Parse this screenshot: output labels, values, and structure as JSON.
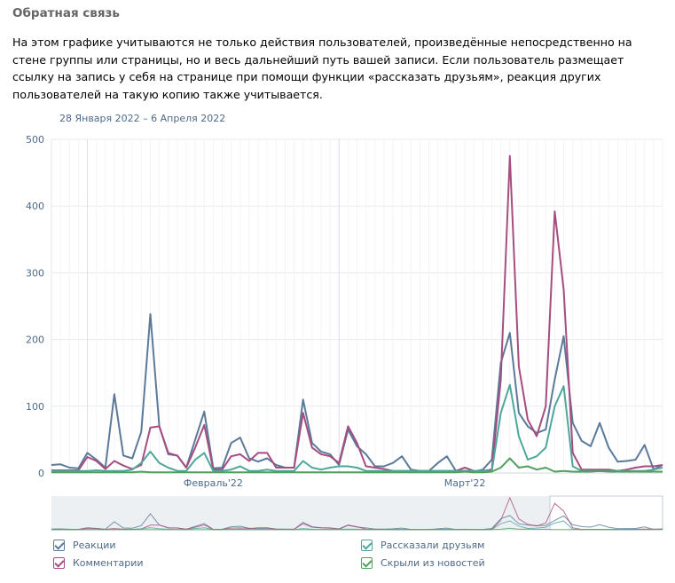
{
  "header": {
    "title": "Обратная связь",
    "description": "На этом графике учитываются не только действия пользователей, произведённые непосредственно на стене группы или страницы, но и весь дальнейший путь вашей записи. Если пользователь размещает ссылку на запись у себя на странице при помощи функции «рассказать друзьям», реакция других пользователей на такую копию также учитывается.",
    "date_range": "28 Января 2022 – 6 Апреля 2022"
  },
  "chart_data": {
    "type": "line",
    "x_start": "2022-01-28",
    "x_end": "2022-04-06",
    "ylim": [
      0,
      500
    ],
    "yticks": [
      0,
      100,
      200,
      300,
      400,
      500
    ],
    "xtick_labels": [
      {
        "label": "Февраль'22",
        "date": "2022-02-01"
      },
      {
        "label": "Март'22",
        "date": "2022-03-01"
      }
    ],
    "grid": true,
    "legend_position": "bottom",
    "series": [
      {
        "name": "Реакции",
        "color": "#5b7a99",
        "values": [
          12,
          13,
          8,
          7,
          30,
          20,
          8,
          118,
          26,
          22,
          62,
          238,
          70,
          28,
          26,
          8,
          50,
          92,
          7,
          8,
          45,
          53,
          22,
          17,
          22,
          12,
          8,
          8,
          110,
          45,
          32,
          28,
          12,
          65,
          40,
          28,
          10,
          10,
          15,
          25,
          5,
          3,
          3,
          15,
          25,
          3,
          3,
          2,
          5,
          20,
          165,
          210,
          90,
          70,
          60,
          65,
          140,
          205,
          75,
          48,
          40,
          75,
          38,
          17,
          18,
          20,
          42,
          5,
          12
        ]
      },
      {
        "name": "Комментарии",
        "color": "#a64d80",
        "values": [
          4,
          4,
          4,
          4,
          24,
          18,
          6,
          18,
          11,
          6,
          12,
          68,
          70,
          30,
          26,
          8,
          38,
          72,
          5,
          5,
          25,
          28,
          18,
          30,
          30,
          8,
          8,
          8,
          90,
          38,
          28,
          25,
          15,
          70,
          45,
          10,
          8,
          6,
          3,
          3,
          3,
          3,
          3,
          3,
          3,
          3,
          8,
          3,
          3,
          5,
          140,
          475,
          160,
          80,
          55,
          100,
          392,
          275,
          30,
          5,
          5,
          5,
          5,
          3,
          5,
          8,
          10,
          10,
          12
        ]
      },
      {
        "name": "Рассказали друзьям",
        "color": "#4ea69c",
        "values": [
          3,
          3,
          3,
          3,
          3,
          4,
          3,
          3,
          3,
          5,
          15,
          32,
          15,
          8,
          3,
          3,
          20,
          30,
          3,
          3,
          5,
          10,
          3,
          3,
          5,
          3,
          3,
          3,
          18,
          8,
          5,
          8,
          10,
          10,
          8,
          3,
          3,
          3,
          3,
          3,
          3,
          3,
          3,
          3,
          3,
          3,
          3,
          3,
          3,
          3,
          90,
          132,
          55,
          20,
          25,
          38,
          100,
          130,
          10,
          3,
          3,
          3,
          3,
          3,
          3,
          3,
          3,
          5,
          8
        ]
      },
      {
        "name": "Скрыли из новостей",
        "color": "#52a05e",
        "values": [
          1,
          1,
          1,
          1,
          1,
          1,
          1,
          1,
          1,
          1,
          2,
          1,
          1,
          1,
          1,
          1,
          1,
          1,
          1,
          1,
          1,
          1,
          1,
          1,
          1,
          1,
          1,
          1,
          1,
          1,
          1,
          1,
          1,
          1,
          1,
          1,
          1,
          1,
          1,
          1,
          1,
          1,
          1,
          1,
          1,
          1,
          2,
          1,
          1,
          2,
          8,
          22,
          8,
          10,
          5,
          8,
          2,
          3,
          2,
          2,
          2,
          3,
          2,
          2,
          2,
          2,
          2,
          2,
          2
        ]
      }
    ]
  }
}
